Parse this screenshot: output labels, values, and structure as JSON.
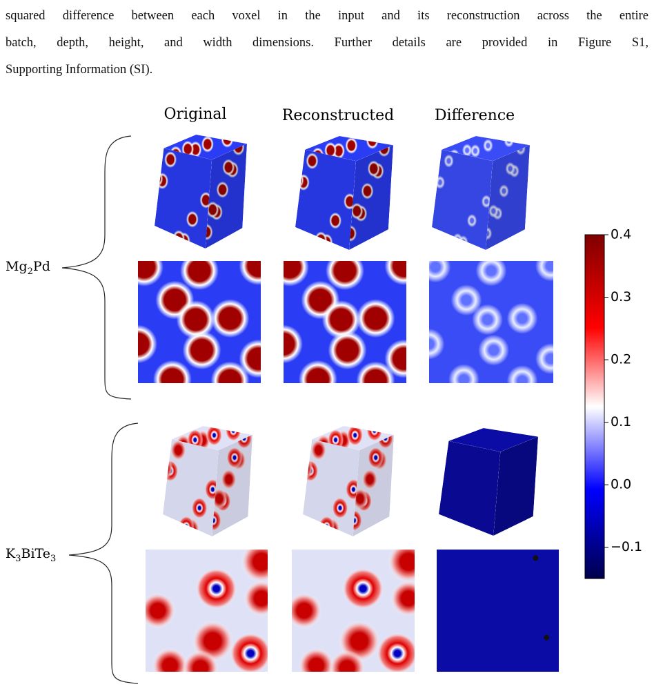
{
  "paragraph": {
    "lines": [
      "squared difference between each voxel in the input and its reconstruction across the entire",
      "batch, depth, height, and width dimensions.  Further details are provided in Figure S1,",
      "Supporting Information (SI)."
    ]
  },
  "figure": {
    "columns": [
      "Original",
      "Reconstructed",
      "Difference"
    ],
    "rows": [
      {
        "label": [
          "Mg",
          "2",
          "Pd"
        ]
      },
      {
        "label": [
          "K",
          "3",
          "BiTe",
          "3"
        ]
      }
    ],
    "colorbar": {
      "lim": [
        -0.15,
        0.4
      ],
      "ticks": [
        0.4,
        0.3,
        0.2,
        0.1,
        {
          "value": 0.0,
          "label": "0.0"
        },
        {
          "value": -0.1,
          "label": "−0.1"
        }
      ]
    }
  }
}
